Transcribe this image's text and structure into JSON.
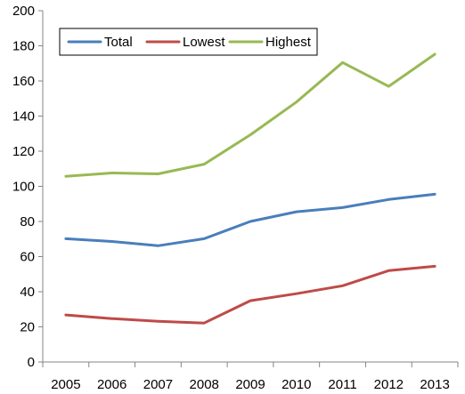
{
  "chart_data": {
    "type": "line",
    "title": "",
    "xlabel": "",
    "ylabel": "",
    "categories": [
      "2005",
      "2006",
      "2007",
      "2008",
      "2009",
      "2010",
      "2011",
      "2012",
      "2013"
    ],
    "ylim": [
      0,
      200
    ],
    "yticks": [
      0,
      20,
      40,
      60,
      80,
      100,
      120,
      140,
      160,
      180,
      200
    ],
    "grid": false,
    "legend_position": "top-left",
    "series": [
      {
        "name": "Total",
        "color": "#4a7ebb",
        "values": [
          70.2,
          68.6,
          66.2,
          70.2,
          80.0,
          85.5,
          87.9,
          92.5,
          95.5
        ]
      },
      {
        "name": "Lowest",
        "color": "#be4b48",
        "values": [
          26.8,
          24.7,
          23.2,
          22.2,
          34.9,
          38.9,
          43.4,
          52.0,
          54.5
        ]
      },
      {
        "name": "Highest",
        "color": "#98b954",
        "values": [
          105.7,
          107.6,
          107.1,
          112.6,
          129.3,
          148.0,
          170.5,
          156.9,
          175.2
        ]
      }
    ]
  }
}
